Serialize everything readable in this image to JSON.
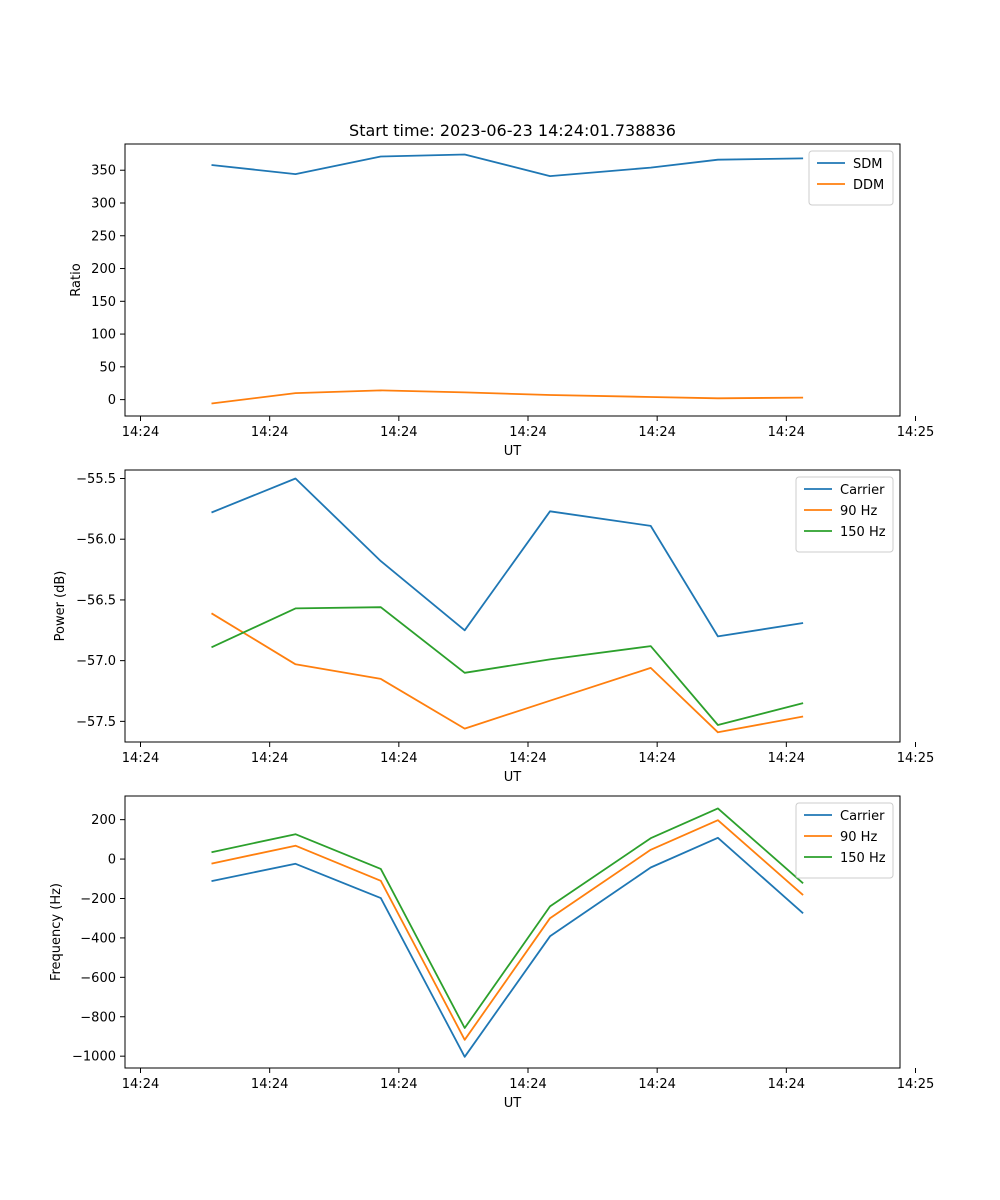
{
  "chart_data": [
    {
      "type": "line",
      "title": "Start time: 2023-06-23 14:24:01.738836",
      "xlabel": "UT",
      "ylabel": "Ratio",
      "x": [
        1.17,
        1.82,
        2.48,
        3.13,
        3.79,
        4.57,
        5.09,
        5.75
      ],
      "xlim": [
        0.5,
        6.5
      ],
      "xticks": [
        0.62,
        1.62,
        2.62,
        3.62,
        4.62,
        5.62,
        6.62
      ],
      "xtick_labels": [
        "14:24",
        "14:24",
        "14:24",
        "14:24",
        "14:24",
        "14:24",
        "14:25"
      ],
      "ylim": [
        -25,
        390
      ],
      "yticks": [
        0,
        50,
        100,
        150,
        200,
        250,
        300,
        350
      ],
      "ytick_labels": [
        "0",
        "50",
        "100",
        "150",
        "200",
        "250",
        "300",
        "350"
      ],
      "legend": "top-right",
      "grid": false,
      "series": [
        {
          "name": "SDM",
          "color": "#1f77b4",
          "values": [
            358,
            344,
            371,
            374,
            341,
            354,
            366,
            368
          ]
        },
        {
          "name": "DDM",
          "color": "#ff7f0e",
          "values": [
            -6,
            10,
            14,
            11,
            7,
            4,
            2,
            3
          ]
        }
      ]
    },
    {
      "type": "line",
      "title": "",
      "xlabel": "UT",
      "ylabel": "Power (dB)",
      "x": [
        1.17,
        1.82,
        2.48,
        3.13,
        3.79,
        4.57,
        5.09,
        5.75
      ],
      "xlim": [
        0.5,
        6.5
      ],
      "xticks": [
        0.62,
        1.62,
        2.62,
        3.62,
        4.62,
        5.62,
        6.62
      ],
      "xtick_labels": [
        "14:24",
        "14:24",
        "14:24",
        "14:24",
        "14:24",
        "14:24",
        "14:25"
      ],
      "ylim": [
        -57.67,
        -55.43
      ],
      "yticks": [
        -57.5,
        -57.0,
        -56.5,
        -56.0,
        -55.5
      ],
      "ytick_labels": [
        "−57.5",
        "−57.0",
        "−56.5",
        "−56.0",
        "−55.5"
      ],
      "legend": "top-right",
      "grid": false,
      "series": [
        {
          "name": "Carrier",
          "color": "#1f77b4",
          "values": [
            -55.78,
            -55.5,
            -56.18,
            -56.75,
            -55.77,
            -55.89,
            -56.8,
            -56.69
          ]
        },
        {
          "name": "90 Hz",
          "color": "#ff7f0e",
          "values": [
            -56.61,
            -57.03,
            -57.15,
            -57.56,
            -57.33,
            -57.06,
            -57.59,
            -57.46
          ]
        },
        {
          "name": "150 Hz",
          "color": "#2ca02c",
          "values": [
            -56.89,
            -56.57,
            -56.56,
            -57.1,
            -56.99,
            -56.88,
            -57.53,
            -57.35
          ]
        }
      ]
    },
    {
      "type": "line",
      "title": "",
      "xlabel": "UT",
      "ylabel": "Frequency (Hz)",
      "x": [
        1.17,
        1.82,
        2.48,
        3.13,
        3.79,
        4.57,
        5.09,
        5.75
      ],
      "xlim": [
        0.5,
        6.5
      ],
      "xticks": [
        0.62,
        1.62,
        2.62,
        3.62,
        4.62,
        5.62,
        6.62
      ],
      "xtick_labels": [
        "14:24",
        "14:24",
        "14:24",
        "14:24",
        "14:24",
        "14:24",
        "14:25"
      ],
      "ylim": [
        -1060,
        320
      ],
      "yticks": [
        -1000,
        -800,
        -600,
        -400,
        -200,
        0,
        200
      ],
      "ytick_labels": [
        "−1000",
        "−800",
        "−600",
        "−400",
        "−200",
        "0",
        "200"
      ],
      "legend": "top-right",
      "grid": false,
      "series": [
        {
          "name": "Carrier",
          "color": "#1f77b4",
          "values": [
            -112,
            -24,
            -198,
            -1003,
            -392,
            -43,
            108,
            -275
          ]
        },
        {
          "name": "90 Hz",
          "color": "#ff7f0e",
          "values": [
            -23,
            68,
            -110,
            -917,
            -300,
            47,
            197,
            -183
          ]
        },
        {
          "name": "150 Hz",
          "color": "#2ca02c",
          "values": [
            35,
            126,
            -50,
            -857,
            -240,
            106,
            257,
            -123
          ]
        }
      ]
    }
  ]
}
